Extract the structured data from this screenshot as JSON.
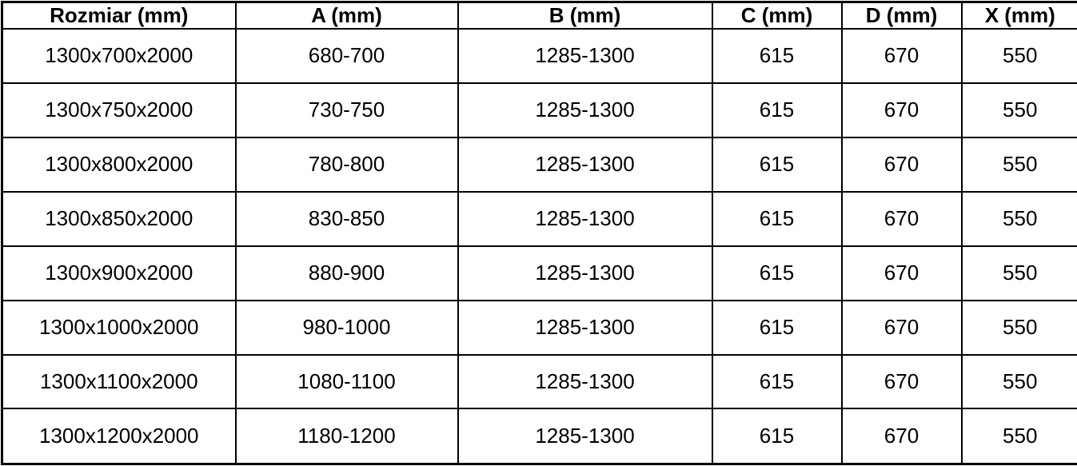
{
  "table": {
    "headers": [
      "Rozmiar (mm)",
      "A (mm)",
      "B (mm)",
      "C (mm)",
      "D (mm)",
      "X (mm)"
    ],
    "rows": [
      [
        "1300x700x2000",
        "680-700",
        "1285-1300",
        "615",
        "670",
        "550"
      ],
      [
        "1300x750x2000",
        "730-750",
        "1285-1300",
        "615",
        "670",
        "550"
      ],
      [
        "1300x800x2000",
        "780-800",
        "1285-1300",
        "615",
        "670",
        "550"
      ],
      [
        "1300x850x2000",
        "830-850",
        "1285-1300",
        "615",
        "670",
        "550"
      ],
      [
        "1300x900x2000",
        "880-900",
        "1285-1300",
        "615",
        "670",
        "550"
      ],
      [
        "1300x1000x2000",
        "980-1000",
        "1285-1300",
        "615",
        "670",
        "550"
      ],
      [
        "1300x1100x2000",
        "1080-1100",
        "1285-1300",
        "615",
        "670",
        "550"
      ],
      [
        "1300x1200x2000",
        "1180-1200",
        "1285-1300",
        "615",
        "670",
        "550"
      ]
    ],
    "colors": {
      "border": "#000000",
      "text": "#000000",
      "background": "#ffffff"
    }
  }
}
